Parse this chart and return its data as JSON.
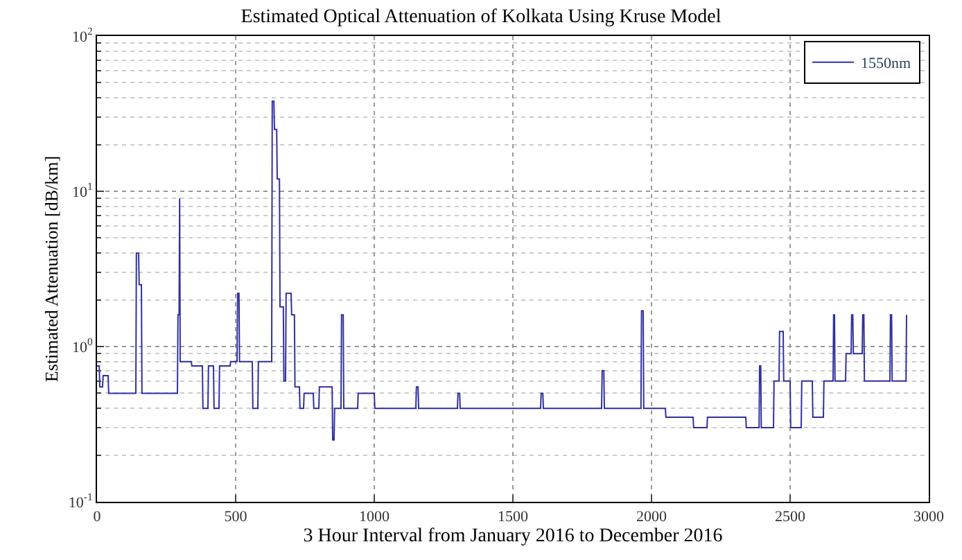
{
  "chart_data": {
    "type": "line",
    "title": "Estimated Optical Attenuation of Kolkata Using Kruse Model",
    "xlabel": "3 Hour Interval from January 2016 to December 2016",
    "ylabel": "Estimated Attenuation [dB/km]",
    "series": [
      {
        "name": "1550nm",
        "color": "#3030a0",
        "x": [
          0,
          8,
          10,
          20,
          22,
          40,
          42,
          140,
          142,
          150,
          152,
          160,
          162,
          290,
          292,
          296,
          298,
          300,
          340,
          342,
          380,
          382,
          400,
          402,
          420,
          422,
          440,
          442,
          480,
          482,
          505,
          507,
          512,
          514,
          560,
          562,
          580,
          582,
          630,
          632,
          638,
          640,
          648,
          650,
          658,
          660,
          672,
          674,
          680,
          682,
          700,
          702,
          712,
          714,
          730,
          732,
          745,
          747,
          780,
          782,
          800,
          802,
          848,
          850,
          855,
          857,
          880,
          882,
          888,
          890,
          940,
          942,
          1000,
          1002,
          1150,
          1152,
          1158,
          1160,
          1300,
          1302,
          1308,
          1310,
          1600,
          1602,
          1608,
          1610,
          1820,
          1822,
          1828,
          1830,
          1962,
          1964,
          1970,
          1972,
          2050,
          2052,
          2150,
          2152,
          2200,
          2202,
          2340,
          2342,
          2388,
          2390,
          2394,
          2396,
          2440,
          2442,
          2460,
          2462,
          2475,
          2477,
          2500,
          2502,
          2540,
          2542,
          2580,
          2582,
          2620,
          2622,
          2655,
          2657,
          2660,
          2662,
          2700,
          2702,
          2720,
          2722,
          2726,
          2728,
          2760,
          2762,
          2766,
          2768,
          2860,
          2862,
          2866,
          2868,
          2918,
          2920
        ],
        "values": [
          0.75,
          0.75,
          0.55,
          0.55,
          0.65,
          0.65,
          0.5,
          0.5,
          4,
          4,
          2.5,
          2.5,
          0.5,
          0.5,
          1.6,
          1.6,
          9,
          0.8,
          0.8,
          0.75,
          0.75,
          0.4,
          0.4,
          0.75,
          0.75,
          0.4,
          0.4,
          0.75,
          0.75,
          0.8,
          0.8,
          2.2,
          2.2,
          0.8,
          0.8,
          0.4,
          0.4,
          0.8,
          0.8,
          38,
          38,
          25,
          25,
          12,
          12,
          1.8,
          1.8,
          0.6,
          0.6,
          2.2,
          2.2,
          1.6,
          1.6,
          0.55,
          0.55,
          0.4,
          0.4,
          0.5,
          0.5,
          0.4,
          0.4,
          0.55,
          0.55,
          0.25,
          0.25,
          0.4,
          0.4,
          1.6,
          1.6,
          0.4,
          0.4,
          0.5,
          0.5,
          0.4,
          0.4,
          0.55,
          0.55,
          0.4,
          0.4,
          0.5,
          0.5,
          0.4,
          0.4,
          0.5,
          0.5,
          0.4,
          0.4,
          0.7,
          0.7,
          0.4,
          0.4,
          1.7,
          1.7,
          0.4,
          0.4,
          0.35,
          0.35,
          0.3,
          0.3,
          0.35,
          0.35,
          0.3,
          0.3,
          0.75,
          0.75,
          0.3,
          0.3,
          0.6,
          0.6,
          1.25,
          1.25,
          0.6,
          0.6,
          0.3,
          0.3,
          0.6,
          0.6,
          0.35,
          0.35,
          0.6,
          0.6,
          1.6,
          1.6,
          0.6,
          0.6,
          0.9,
          0.9,
          1.6,
          1.6,
          0.9,
          0.9,
          1.6,
          1.6,
          0.6,
          0.6,
          1.6,
          1.6,
          0.6,
          0.6,
          1.6
        ]
      }
    ],
    "xlim": [
      0,
      3000
    ],
    "xticks": [
      0,
      500,
      1000,
      1500,
      2000,
      2500,
      3000
    ],
    "ylim": [
      0.1,
      100
    ],
    "yticks": [
      {
        "value": 0.1,
        "label": "10$^{-1}$"
      },
      {
        "value": 1,
        "label": "10$^{0}$"
      },
      {
        "value": 10,
        "label": "10$^{1}$"
      },
      {
        "value": 100,
        "label": "10$^{2}$"
      }
    ],
    "log": "y",
    "grid": true,
    "legend": "top right",
    "line_style": "solid",
    "marker": "none"
  }
}
